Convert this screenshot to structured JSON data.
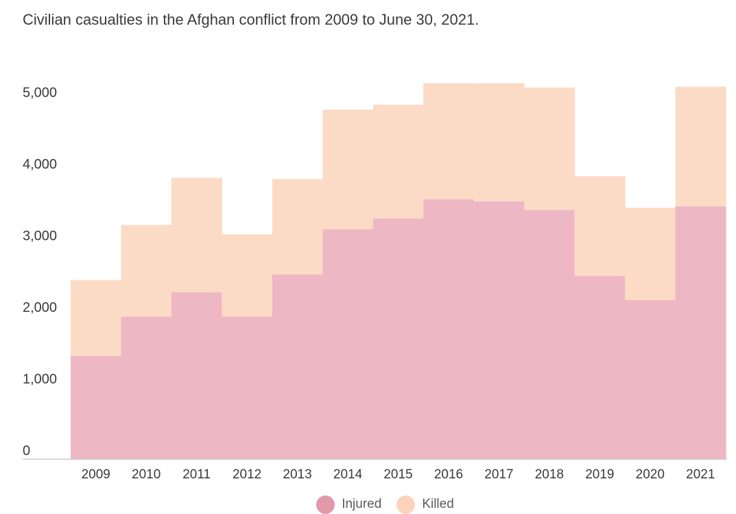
{
  "title": "Civilian casualties in the Afghan conflict from 2009 to June 30, 2021.",
  "legend": {
    "items": [
      {
        "label": "Injured",
        "color": "#e29aaa"
      },
      {
        "label": "Killed",
        "color": "#fbd3bd"
      }
    ]
  },
  "chart_data": {
    "type": "bar",
    "stacked": true,
    "title": "Civilian casualties in the Afghan conflict from 2009 to June 30, 2021.",
    "xlabel": "",
    "ylabel": "",
    "categories": [
      "2009",
      "2010",
      "2011",
      "2012",
      "2013",
      "2014",
      "2015",
      "2016",
      "2017",
      "2018",
      "2019",
      "2020",
      "2021"
    ],
    "series": [
      {
        "name": "Injured",
        "color": "#edb8c4",
        "values": [
          1440,
          1990,
          2330,
          1990,
          2580,
          3210,
          3360,
          3630,
          3600,
          3480,
          2560,
          2220,
          3530
        ]
      },
      {
        "name": "Killed",
        "color": "#fcdbc6",
        "values": [
          1060,
          1280,
          1600,
          1150,
          1330,
          1670,
          1590,
          1620,
          1650,
          1710,
          1390,
          1290,
          1670
        ]
      }
    ],
    "yticks": [
      0,
      1000,
      2000,
      3000,
      4000,
      5000
    ],
    "ytick_labels": [
      "0",
      "1,000",
      "2,000",
      "3,000",
      "4,000",
      "5,000"
    ],
    "ylim": [
      0,
      5180
    ],
    "grid": false,
    "legend_position": "bottom"
  }
}
